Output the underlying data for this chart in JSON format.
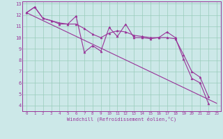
{
  "xlabel": "Windchill (Refroidissement éolien,°C)",
  "bg_color": "#cce8e8",
  "grid_color": "#99ccbb",
  "line_color": "#993399",
  "spine_color": "#993399",
  "xlim": [
    -0.5,
    23.5
  ],
  "ylim": [
    3.5,
    13.2
  ],
  "yticks": [
    4,
    5,
    6,
    7,
    8,
    9,
    10,
    11,
    12,
    13
  ],
  "xticks": [
    0,
    1,
    2,
    3,
    4,
    5,
    6,
    7,
    8,
    9,
    10,
    11,
    12,
    13,
    14,
    15,
    16,
    17,
    18,
    19,
    20,
    21,
    22,
    23
  ],
  "series_zigzag": {
    "x": [
      0,
      1,
      2,
      3,
      4,
      5,
      6,
      7,
      8,
      9,
      10,
      11,
      12,
      13,
      14,
      15,
      16,
      17,
      18,
      19,
      20,
      21,
      22
    ],
    "y": [
      12.2,
      12.7,
      11.7,
      11.5,
      11.2,
      11.2,
      11.9,
      8.7,
      9.3,
      8.8,
      10.9,
      10.1,
      11.2,
      10.0,
      10.0,
      9.9,
      10.0,
      10.5,
      10.0,
      8.1,
      6.4,
      6.0,
      4.2
    ]
  },
  "series_smooth": {
    "x": [
      0,
      1,
      2,
      3,
      4,
      5,
      6,
      7,
      8,
      9,
      10,
      11,
      12,
      13,
      14,
      15,
      16,
      17,
      18,
      19,
      20,
      21,
      22
    ],
    "y": [
      12.2,
      12.7,
      11.7,
      11.5,
      11.3,
      11.2,
      11.2,
      10.8,
      10.3,
      10.0,
      10.4,
      10.6,
      10.5,
      10.2,
      10.1,
      10.0,
      10.0,
      10.0,
      9.9,
      8.5,
      7.0,
      6.5,
      4.8
    ]
  },
  "series_trend": {
    "x": [
      0,
      23
    ],
    "y": [
      12.2,
      4.2
    ]
  }
}
